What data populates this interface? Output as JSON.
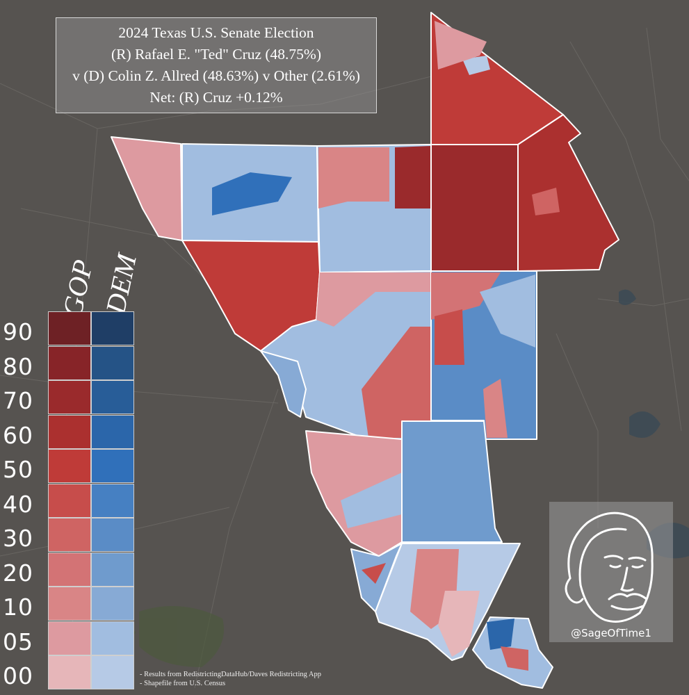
{
  "title": {
    "line1": "2024 Texas U.S. Senate Election",
    "line2": "(R) Rafael E. \"Ted\" Cruz (48.75%)",
    "line3": "v (D) Colin Z. Allred (48.63%) v Other (2.61%)",
    "line4": "Net: (R) Cruz +0.12%"
  },
  "legend": {
    "gop_label": "GOP",
    "dem_label": "DEM",
    "ticks": [
      "90",
      "80",
      "70",
      "60",
      "50",
      "40",
      "30",
      "20",
      "10",
      "05",
      "00"
    ],
    "gop_colors": [
      "#6e2125",
      "#872428",
      "#9a2a2c",
      "#ab302f",
      "#bf3b38",
      "#c74d4b",
      "#cf6463",
      "#d37375",
      "#d98586",
      "#dd9aa0",
      "#e6b6b9"
    ],
    "dem_colors": [
      "#1f3e66",
      "#255386",
      "#285d98",
      "#2b66aa",
      "#3070ba",
      "#4680c2",
      "#5a8cc6",
      "#6f9bcd",
      "#87aad5",
      "#a1bde0",
      "#b6cae6"
    ]
  },
  "credit": {
    "handle": "@SageOfTime1"
  },
  "sources": {
    "line1": "- Results from RedistrictingDataHub/Daves Redistricting App",
    "line2": "- Shapefile from U.S. Census"
  },
  "map_colors": {
    "background": "#565350",
    "county_border": "#ffffff",
    "water": "#3b4a55"
  }
}
